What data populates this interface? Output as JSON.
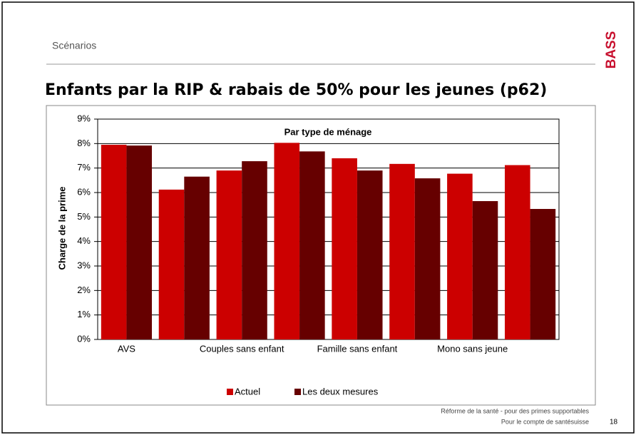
{
  "section": "Scénarios",
  "logo": "BASS",
  "slide_title": "Enfants par la RIP & rabais de 50% pour les jeunes (p62)",
  "footer": [
    "Réforme de la santé - pour des primes supportables",
    "Pour le compte de santésuisse"
  ],
  "page_number": "18",
  "chart_data": {
    "type": "bar",
    "title": "Par type de ménage",
    "y_label": "Charge de la prime",
    "categories": [
      "AVS",
      null,
      "Couples sans enfant",
      null,
      "Famille sans enfant",
      null,
      "Mono sans jeune",
      null
    ],
    "series": [
      {
        "name": "Actuel",
        "color": "#cc0000",
        "values": [
          7.95,
          6.12,
          6.9,
          8.03,
          7.4,
          7.17,
          6.77,
          7.12
        ]
      },
      {
        "name": "Les deux mesures",
        "color": "#660000",
        "values": [
          7.92,
          6.65,
          7.28,
          7.68,
          6.9,
          6.58,
          5.65,
          5.33
        ]
      }
    ],
    "ylim": [
      0,
      9
    ],
    "yticks": [
      {
        "value": 0,
        "label": "0%"
      },
      {
        "value": 1,
        "label": "1%"
      },
      {
        "value": 2,
        "label": "2%"
      },
      {
        "value": 3,
        "label": "3%"
      },
      {
        "value": 4,
        "label": "4%"
      },
      {
        "value": 5,
        "label": "5%"
      },
      {
        "value": 6,
        "label": "6%"
      },
      {
        "value": 7,
        "label": "7%"
      },
      {
        "value": 8,
        "label": "8%"
      },
      {
        "value": 9,
        "label": "9%"
      }
    ],
    "grid": true,
    "legend": "bottom"
  }
}
